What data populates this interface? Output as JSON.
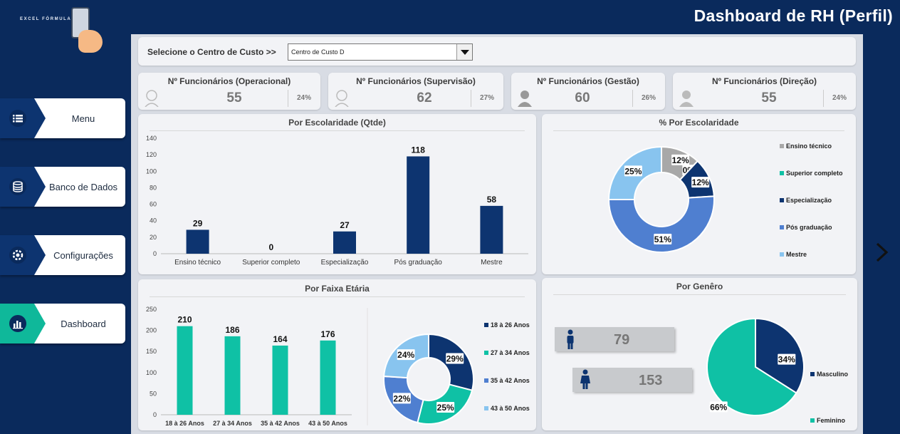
{
  "app": {
    "title": "Dashboard de RH (Perfil)",
    "logo_text": "EXCEL FÓRMULA",
    "colors": {
      "navy": "#0a2a5c",
      "dark_bar": "#0d3470",
      "teal": "#0fc1a5",
      "blue": "#4f7fd0",
      "light_blue": "#88c4ef",
      "gray": "#a8a8a8"
    }
  },
  "sidebar": {
    "items": [
      {
        "label": "Menu",
        "icon": "list-icon"
      },
      {
        "label": "Banco de Dados",
        "icon": "database-icon"
      },
      {
        "label": "Configurações",
        "icon": "settings-icon"
      },
      {
        "label": "Dashboard",
        "icon": "chart-icon"
      }
    ]
  },
  "filter": {
    "label": "Selecione o Centro de Custo >>",
    "selected": "Centro de Custo D"
  },
  "kpis": [
    {
      "title": "Nº Funcionários (Operacional)",
      "value": "55",
      "pct": "24%"
    },
    {
      "title": "Nº Funcionários (Supervisão)",
      "value": "62",
      "pct": "27%"
    },
    {
      "title": "Nº Funcionários (Gestão)",
      "value": "60",
      "pct": "26%"
    },
    {
      "title": "Nº Funcionários (Direção)",
      "value": "55",
      "pct": "24%"
    }
  ],
  "gender": {
    "title": "Por Genêro",
    "male_count": "79",
    "female_count": "153"
  },
  "chart_data": [
    {
      "type": "bar",
      "title": "Por Escolaridade (Qtde)",
      "categories": [
        "Ensino técnico",
        "Superior completo",
        "Especialização",
        "Pós graduação",
        "Mestre"
      ],
      "values": [
        29,
        0,
        27,
        118,
        58
      ],
      "ylim": [
        0,
        140
      ],
      "yticks": [
        0,
        20,
        40,
        60,
        80,
        100,
        120,
        140
      ],
      "color": "#0d3470"
    },
    {
      "type": "pie",
      "title": "% Por Escolaridade",
      "labels": [
        "Ensino técnico",
        "Superior completo",
        "Especialização",
        "Pós graduação",
        "Mestre"
      ],
      "values": [
        12,
        0,
        12,
        51,
        25
      ],
      "colors": [
        "#a8a8a8",
        "#0fc1a5",
        "#0d3470",
        "#4f7fd0",
        "#88c4ef"
      ],
      "legend": "right"
    },
    {
      "type": "bar",
      "title": "Por Faixa Etária",
      "categories": [
        "18 à 26 Anos",
        "27 à 34 Anos",
        "35 à 42 Anos",
        "43 à 50 Anos"
      ],
      "values": [
        210,
        186,
        164,
        176
      ],
      "ylim": [
        0,
        250
      ],
      "yticks": [
        0,
        50,
        100,
        150,
        200,
        250
      ],
      "color": "#0fc1a5"
    },
    {
      "type": "pie",
      "title": "Por Faixa Etária",
      "labels": [
        "18 à 26 Anos",
        "27 à 34 Anos",
        "35 à 42 Anos",
        "43 à 50 Anos"
      ],
      "values": [
        29,
        25,
        22,
        24
      ],
      "colors": [
        "#0d3470",
        "#0fc1a5",
        "#4f7fd0",
        "#88c4ef"
      ],
      "legend": "right"
    },
    {
      "type": "pie",
      "title": "Por Genêro",
      "labels": [
        "Masculino",
        "Feminino"
      ],
      "values": [
        34,
        66
      ],
      "colors": [
        "#0d3470",
        "#0fc1a5"
      ],
      "legend": "right"
    }
  ]
}
